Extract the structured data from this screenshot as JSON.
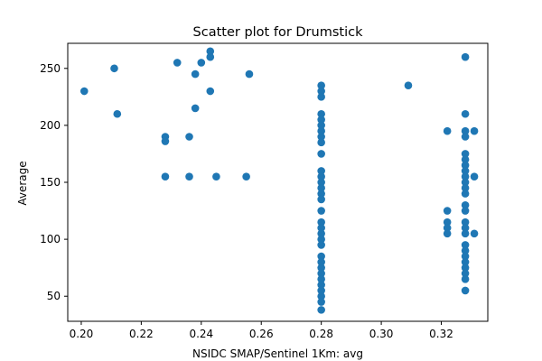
{
  "chart_data": {
    "type": "scatter",
    "title": "Scatter plot for Drumstick",
    "xlabel": "NSIDC SMAP/Sentinel 1Km: avg",
    "ylabel": "Average",
    "xlim": [
      0.1955,
      0.3355
    ],
    "ylim": [
      28,
      272
    ],
    "xticks": [
      0.2,
      0.22,
      0.24,
      0.26,
      0.28,
      0.3,
      0.32
    ],
    "xtick_labels": [
      "0.20",
      "0.22",
      "0.24",
      "0.26",
      "0.28",
      "0.30",
      "0.32"
    ],
    "yticks": [
      50,
      100,
      150,
      200,
      250
    ],
    "ytick_labels": [
      "50",
      "100",
      "150",
      "200",
      "250"
    ],
    "grid": false,
    "marker_color": "#1f77b4",
    "points": [
      [
        0.201,
        230
      ],
      [
        0.211,
        250
      ],
      [
        0.212,
        210
      ],
      [
        0.228,
        190
      ],
      [
        0.228,
        186
      ],
      [
        0.228,
        155
      ],
      [
        0.232,
        255
      ],
      [
        0.236,
        190
      ],
      [
        0.236,
        155
      ],
      [
        0.238,
        245
      ],
      [
        0.238,
        215
      ],
      [
        0.24,
        255
      ],
      [
        0.243,
        265
      ],
      [
        0.243,
        260
      ],
      [
        0.243,
        230
      ],
      [
        0.245,
        155
      ],
      [
        0.255,
        155
      ],
      [
        0.256,
        245
      ],
      [
        0.28,
        235
      ],
      [
        0.28,
        230
      ],
      [
        0.28,
        225
      ],
      [
        0.28,
        210
      ],
      [
        0.28,
        205
      ],
      [
        0.28,
        200
      ],
      [
        0.28,
        195
      ],
      [
        0.28,
        190
      ],
      [
        0.28,
        185
      ],
      [
        0.28,
        175
      ],
      [
        0.28,
        160
      ],
      [
        0.28,
        155
      ],
      [
        0.28,
        150
      ],
      [
        0.28,
        145
      ],
      [
        0.28,
        140
      ],
      [
        0.28,
        135
      ],
      [
        0.28,
        125
      ],
      [
        0.28,
        115
      ],
      [
        0.28,
        110
      ],
      [
        0.28,
        105
      ],
      [
        0.28,
        100
      ],
      [
        0.28,
        95
      ],
      [
        0.28,
        85
      ],
      [
        0.28,
        80
      ],
      [
        0.28,
        75
      ],
      [
        0.28,
        70
      ],
      [
        0.28,
        65
      ],
      [
        0.28,
        60
      ],
      [
        0.28,
        55
      ],
      [
        0.28,
        50
      ],
      [
        0.28,
        45
      ],
      [
        0.28,
        38
      ],
      [
        0.309,
        235
      ],
      [
        0.322,
        195
      ],
      [
        0.322,
        125
      ],
      [
        0.322,
        115
      ],
      [
        0.322,
        110
      ],
      [
        0.322,
        105
      ],
      [
        0.328,
        260
      ],
      [
        0.328,
        210
      ],
      [
        0.328,
        195
      ],
      [
        0.328,
        190
      ],
      [
        0.328,
        175
      ],
      [
        0.328,
        170
      ],
      [
        0.328,
        165
      ],
      [
        0.328,
        160
      ],
      [
        0.328,
        155
      ],
      [
        0.328,
        150
      ],
      [
        0.328,
        145
      ],
      [
        0.328,
        140
      ],
      [
        0.328,
        130
      ],
      [
        0.328,
        125
      ],
      [
        0.328,
        115
      ],
      [
        0.328,
        110
      ],
      [
        0.328,
        105
      ],
      [
        0.328,
        95
      ],
      [
        0.328,
        90
      ],
      [
        0.328,
        85
      ],
      [
        0.328,
        80
      ],
      [
        0.328,
        75
      ],
      [
        0.328,
        70
      ],
      [
        0.328,
        65
      ],
      [
        0.328,
        55
      ],
      [
        0.331,
        195
      ],
      [
        0.331,
        155
      ],
      [
        0.331,
        105
      ]
    ]
  }
}
